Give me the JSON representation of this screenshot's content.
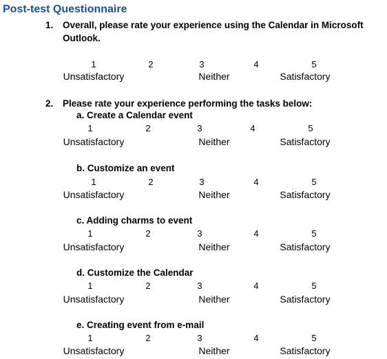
{
  "title": "Post-test Questionnaire",
  "questions": [
    {
      "number": "1.",
      "line1": "Overall, please rate your experience using the Calendar in Microsoft",
      "line2": "Outlook."
    },
    {
      "number": "2.",
      "line1": "Please rate your experience performing the tasks below:"
    }
  ],
  "subitems": [
    {
      "letter": "a.",
      "text": "Create a Calendar event"
    },
    {
      "letter": "b.",
      "text": "Customize an event"
    },
    {
      "letter": "c.",
      "text": "Adding charms to event"
    },
    {
      "letter": "d.",
      "text": "Customize the Calendar"
    },
    {
      "letter": "e.",
      "text": "Creating event from e-mail"
    }
  ],
  "scale": {
    "numbers": [
      "1",
      "2",
      "3",
      "4",
      "5"
    ],
    "low": "Unsatisfactory",
    "mid": "Neither",
    "high": "Satisfactory"
  }
}
